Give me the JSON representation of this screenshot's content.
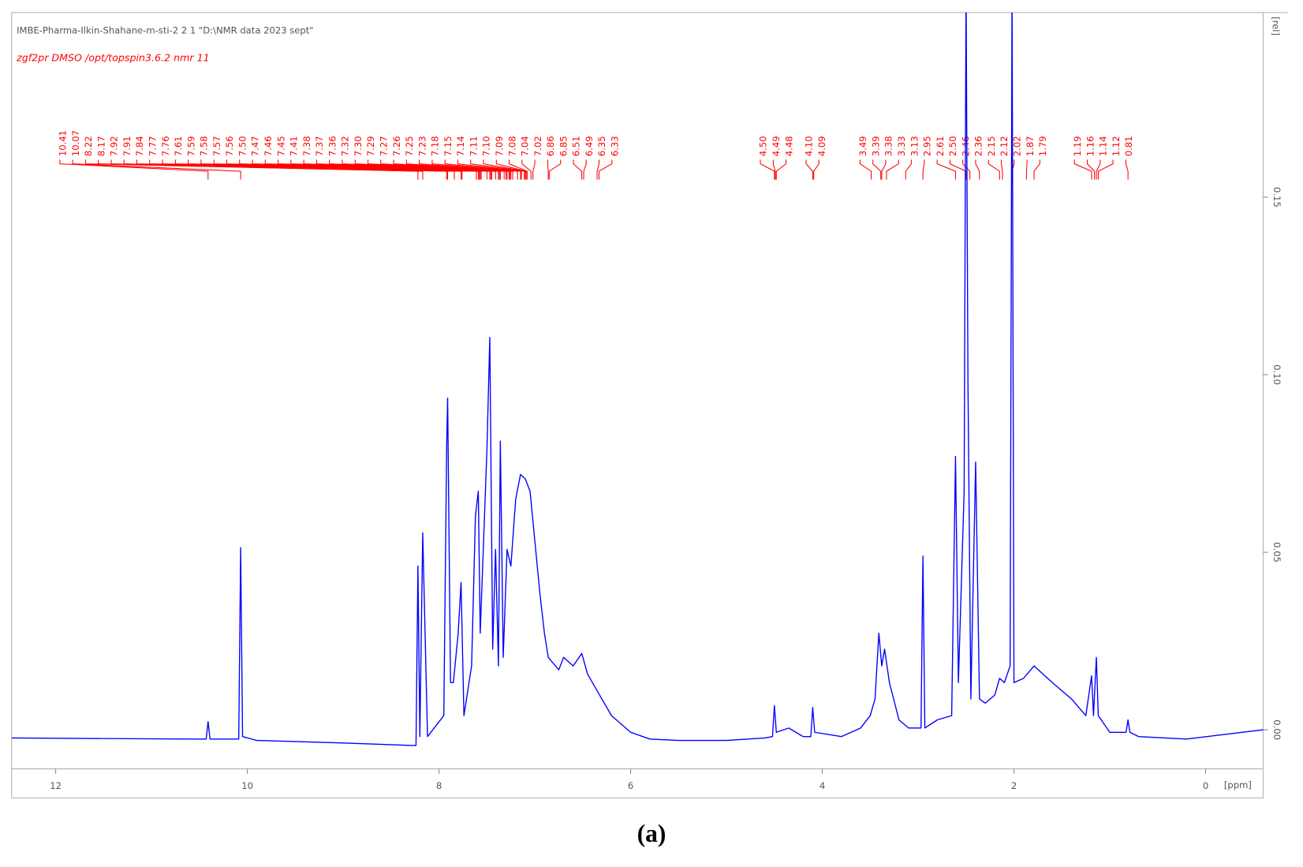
{
  "chart_data": {
    "type": "line",
    "header": "IMBE-Pharma-Ilkin-Shahane-m-sti-2 2 1 \"D:\\NMR data 2023 sept\"",
    "subheader": "zgf2pr DMSO /opt/topspin3.6.2 nmr 11",
    "x_label": "[ppm]",
    "y_label": "[rel]",
    "caption": "(a)",
    "peak_labels": [
      "10.41",
      "10.07",
      "8.22",
      "8.17",
      "7.92",
      "7.91",
      "7.84",
      "7.77",
      "7.76",
      "7.61",
      "7.59",
      "7.58",
      "7.57",
      "7.56",
      "7.50",
      "7.47",
      "7.46",
      "7.45",
      "7.41",
      "7.38",
      "7.37",
      "7.36",
      "7.32",
      "7.30",
      "7.29",
      "7.27",
      "7.26",
      "7.25",
      "7.23",
      "7.18",
      "7.15",
      "7.14",
      "7.11",
      "7.10",
      "7.09",
      "7.08",
      "7.04",
      "7.02",
      "6.86",
      "6.85",
      "6.51",
      "6.49",
      "6.35",
      "6.33",
      "4.50",
      "4.49",
      "4.48",
      "4.10",
      "4.09",
      "3.49",
      "3.39",
      "3.38",
      "3.33",
      "3.13",
      "2.95",
      "2.61",
      "2.50",
      "2.46",
      "2.36",
      "2.15",
      "2.12",
      "2.02",
      "1.87",
      "1.79",
      "1.19",
      "1.16",
      "1.14",
      "1.12",
      "0.81"
    ],
    "peak_label_color": "#ff0000",
    "x": [
      12.46,
      10.6,
      10.43,
      10.41,
      10.39,
      10.09,
      10.07,
      10.05,
      9.9,
      9.0,
      8.3,
      8.24,
      8.22,
      8.2,
      8.17,
      8.12,
      7.95,
      7.92,
      7.91,
      7.88,
      7.85,
      7.8,
      7.77,
      7.74,
      7.66,
      7.62,
      7.59,
      7.57,
      7.5,
      7.47,
      7.44,
      7.41,
      7.38,
      7.36,
      7.33,
      7.29,
      7.25,
      7.2,
      7.15,
      7.1,
      7.05,
      7.0,
      6.95,
      6.9,
      6.86,
      6.75,
      6.7,
      6.6,
      6.51,
      6.45,
      6.35,
      6.2,
      6.0,
      5.8,
      5.5,
      5.0,
      4.6,
      4.52,
      4.5,
      4.48,
      4.35,
      4.2,
      4.12,
      4.1,
      4.08,
      3.8,
      3.6,
      3.5,
      3.45,
      3.41,
      3.38,
      3.35,
      3.3,
      3.2,
      3.1,
      2.97,
      2.95,
      2.93,
      2.8,
      2.65,
      2.61,
      2.58,
      2.52,
      2.5,
      2.48,
      2.45,
      2.4,
      2.36,
      2.3,
      2.2,
      2.15,
      2.1,
      2.04,
      2.02,
      2.0,
      1.9,
      1.79,
      1.6,
      1.4,
      1.25,
      1.19,
      1.17,
      1.14,
      1.12,
      1.0,
      0.83,
      0.81,
      0.79,
      0.7,
      0.2,
      -0.6
    ],
    "series": [
      {
        "color": "#0000ff",
        "values": [
          -0.0023,
          -0.0026,
          -0.0026,
          0.0023,
          -0.0026,
          -0.0026,
          0.0513,
          -0.0019,
          -0.003,
          -0.0037,
          -0.0044,
          -0.0044,
          0.0461,
          -0.0019,
          0.0555,
          -0.0019,
          0.004,
          0.0801,
          0.0934,
          0.0133,
          0.0133,
          0.0272,
          0.0415,
          0.004,
          0.018,
          0.0602,
          0.0672,
          0.0272,
          0.0789,
          0.1105,
          0.0227,
          0.0508,
          0.018,
          0.0813,
          0.0204,
          0.0508,
          0.0461,
          0.0649,
          0.0719,
          0.0707,
          0.0672,
          0.0532,
          0.0391,
          0.0272,
          0.0204,
          0.0169,
          0.0204,
          0.018,
          0.0215,
          0.0157,
          0.011,
          0.004,
          -0.0007,
          -0.0026,
          -0.003,
          -0.003,
          -0.0023,
          -0.0019,
          0.0068,
          -0.0007,
          0.0005,
          -0.0019,
          -0.0019,
          0.0063,
          -0.0007,
          -0.0019,
          0.0005,
          0.004,
          0.0087,
          0.0272,
          0.018,
          0.0227,
          0.0133,
          0.0028,
          0.0005,
          0.0005,
          0.0489,
          0.0005,
          0.0028,
          0.004,
          0.077,
          0.0133,
          0.0672,
          0.21,
          0.0977,
          0.0087,
          0.0754,
          0.0087,
          0.0075,
          0.0098,
          0.0145,
          0.0133,
          0.018,
          0.21,
          0.0133,
          0.0145,
          0.018,
          0.0133,
          0.0087,
          0.004,
          0.0152,
          0.004,
          0.0204,
          0.004,
          -0.0007,
          -0.0007,
          0.0028,
          -0.0007,
          -0.0019,
          -0.0026,
          0.0
        ]
      }
    ],
    "xlim": [
      12.46,
      -0.6
    ],
    "ylim": [
      -0.011,
      0.202
    ],
    "xticks": [
      12,
      10,
      8,
      6,
      4,
      2,
      0
    ],
    "yticks": [
      {
        "value": 0,
        "label": "0.00"
      },
      {
        "value": 0.05,
        "label": "0.05"
      },
      {
        "value": 0.1,
        "label": "0.10"
      },
      {
        "value": 0.15,
        "label": "0.15"
      }
    ]
  }
}
